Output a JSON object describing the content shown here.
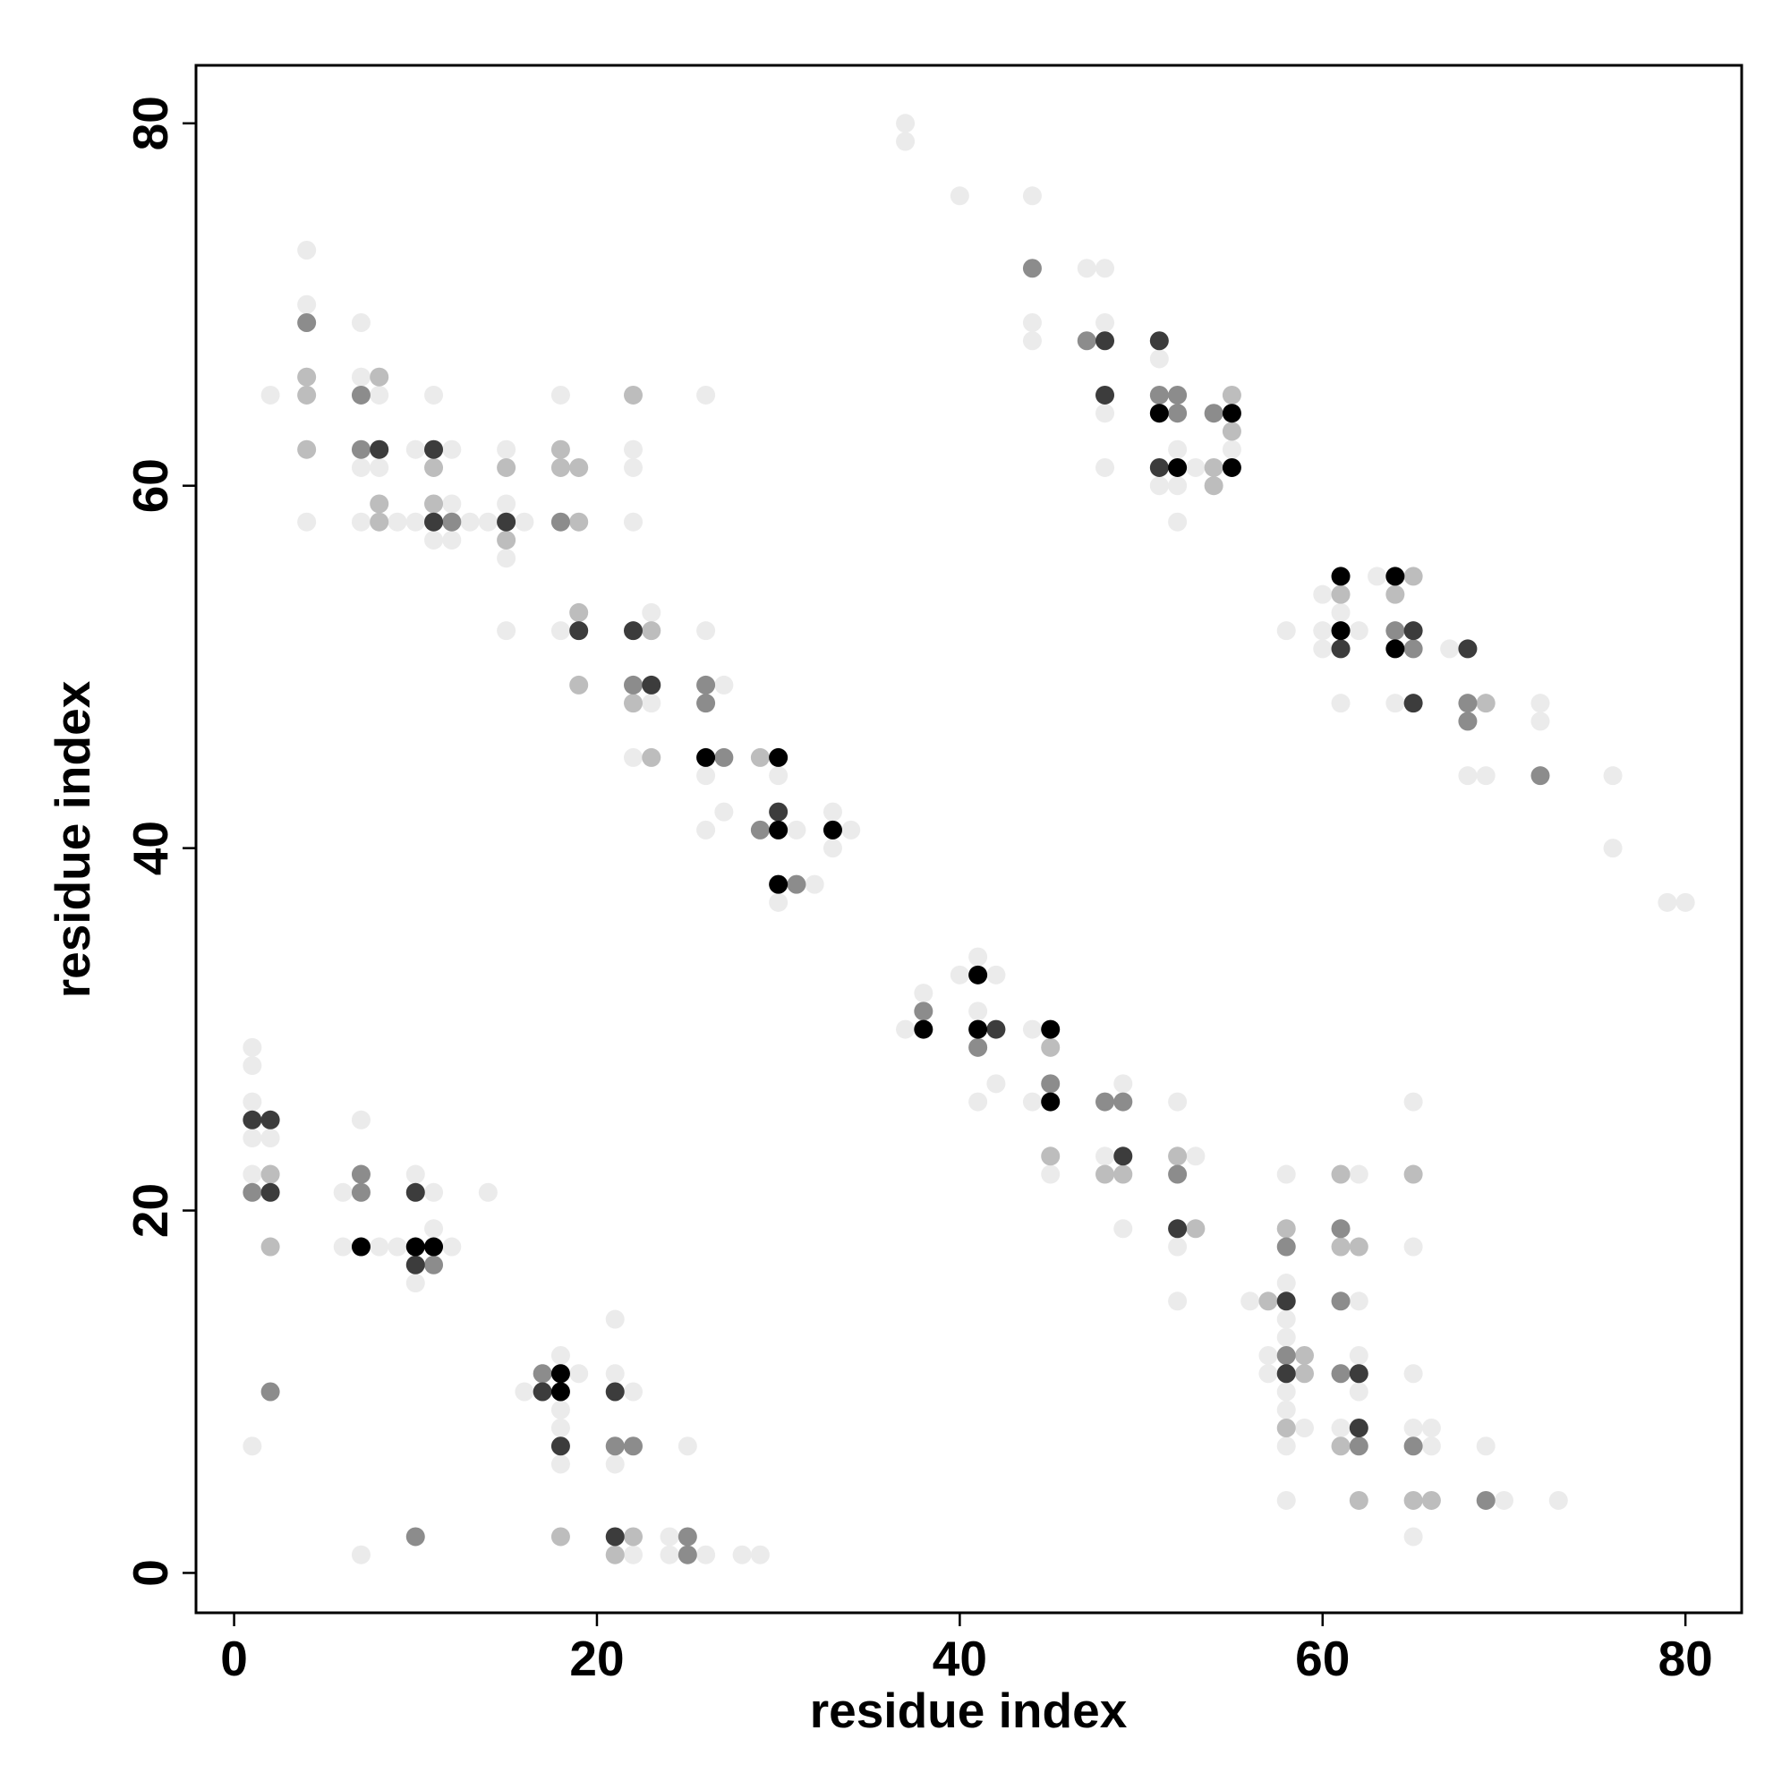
{
  "chart_data": {
    "type": "scatter",
    "x_label": "residue index",
    "y_label": "residue index",
    "xlim": [
      -2.1,
      83.1
    ],
    "ylim": [
      -2.2,
      83.2
    ],
    "xticks": [
      0,
      20,
      40,
      60,
      80
    ],
    "yticks": [
      0,
      20,
      40,
      60,
      80
    ],
    "grid": false,
    "series": [
      {
        "color": "#ebebeb",
        "x": [
          4,
          4,
          2,
          4,
          7,
          7,
          8,
          7,
          8,
          7,
          9,
          11,
          10,
          12,
          12,
          10,
          13,
          14,
          11,
          12,
          15,
          15,
          16,
          15,
          15,
          18,
          22,
          22,
          22,
          26,
          18,
          23,
          23,
          22,
          26,
          27,
          26,
          27,
          26,
          30,
          31,
          33,
          34,
          33,
          32,
          30,
          37,
          37,
          40,
          44,
          47,
          48,
          44,
          44,
          48,
          51,
          48,
          52,
          48,
          53,
          51,
          52,
          52,
          55,
          58,
          60,
          61,
          60,
          62,
          60,
          61,
          63,
          64,
          67,
          68,
          69,
          72,
          72,
          76,
          76,
          79,
          80,
          1,
          1,
          1,
          1,
          2,
          1,
          7,
          6,
          6,
          8,
          9,
          10,
          11,
          11,
          12,
          10,
          14,
          1,
          19,
          16,
          18,
          18,
          18,
          18,
          21,
          21,
          22,
          21,
          25,
          7,
          22,
          24,
          24,
          26,
          28,
          29,
          37,
          38,
          40,
          41,
          42,
          41,
          42,
          41,
          44,
          44,
          45,
          49,
          48,
          49,
          52,
          53,
          52,
          52,
          58,
          56,
          58,
          58,
          58,
          57,
          57,
          58,
          58,
          59,
          58,
          58,
          62,
          62,
          62,
          62,
          61,
          65,
          65,
          65,
          65,
          66,
          66,
          65,
          69,
          70,
          73
        ],
        "y": [
          73,
          70,
          65,
          58,
          69,
          66,
          65,
          61,
          61,
          58,
          58,
          65,
          62,
          62,
          59,
          58,
          58,
          58,
          57,
          57,
          62,
          59,
          58,
          56,
          52,
          65,
          62,
          61,
          58,
          65,
          52,
          53,
          48,
          45,
          52,
          49,
          44,
          42,
          41,
          44,
          41,
          42,
          41,
          40,
          38,
          37,
          80,
          79,
          76,
          76,
          72,
          72,
          69,
          68,
          69,
          67,
          64,
          62,
          61,
          61,
          60,
          60,
          58,
          62,
          52,
          54,
          53,
          52,
          52,
          51,
          48,
          55,
          48,
          51,
          44,
          44,
          48,
          47,
          44,
          40,
          37,
          37,
          29,
          28,
          26,
          24,
          24,
          22,
          25,
          21,
          18,
          18,
          18,
          22,
          21,
          19,
          18,
          16,
          21,
          7,
          11,
          10,
          12,
          9,
          8,
          6,
          14,
          11,
          10,
          6,
          7,
          1,
          1,
          2,
          1,
          1,
          1,
          1,
          30,
          32,
          33,
          34,
          33,
          31,
          27,
          26,
          30,
          26,
          22,
          27,
          23,
          19,
          26,
          23,
          18,
          15,
          22,
          15,
          16,
          14,
          13,
          12,
          11,
          10,
          9,
          8,
          7,
          4,
          22,
          15,
          12,
          10,
          8,
          26,
          18,
          11,
          8,
          8,
          7,
          2,
          7,
          4,
          4
        ]
      },
      {
        "color": "#bdbdbd",
        "x": [
          4,
          4,
          4,
          8,
          8,
          8,
          11,
          11,
          15,
          15,
          18,
          18,
          19,
          19,
          22,
          19,
          19,
          23,
          22,
          23,
          29,
          55,
          55,
          54,
          54,
          61,
          64,
          65,
          69,
          2,
          2,
          18,
          22,
          21,
          45,
          45,
          48,
          49,
          52,
          53,
          58,
          57,
          59,
          59,
          58,
          61,
          61,
          62,
          61,
          62,
          65,
          65,
          66
        ],
        "y": [
          66,
          65,
          62,
          66,
          59,
          58,
          61,
          59,
          61,
          57,
          62,
          61,
          61,
          58,
          65,
          53,
          49,
          52,
          48,
          45,
          45,
          65,
          63,
          61,
          60,
          54,
          54,
          55,
          48,
          22,
          18,
          2,
          2,
          1,
          29,
          23,
          22,
          22,
          23,
          19,
          19,
          15,
          12,
          11,
          8,
          22,
          18,
          18,
          7,
          4,
          22,
          4,
          4
        ]
      },
      {
        "color": "#8c8c8c",
        "x": [
          4,
          7,
          7,
          12,
          18,
          22,
          26,
          26,
          27,
          29,
          31,
          44,
          47,
          51,
          52,
          52,
          54,
          64,
          65,
          68,
          68,
          72,
          1,
          7,
          7,
          11,
          2,
          17,
          21,
          22,
          10,
          25,
          25,
          38,
          41,
          45,
          48,
          49,
          52,
          58,
          58,
          61,
          61,
          61,
          62,
          65,
          69
        ],
        "y": [
          69,
          65,
          62,
          58,
          58,
          49,
          49,
          48,
          45,
          41,
          38,
          72,
          68,
          65,
          65,
          64,
          64,
          52,
          51,
          48,
          47,
          44,
          21,
          22,
          21,
          17,
          10,
          11,
          7,
          7,
          2,
          2,
          1,
          31,
          29,
          27,
          26,
          26,
          22,
          18,
          12,
          19,
          15,
          11,
          7,
          7,
          4
        ]
      },
      {
        "color": "#3c3c3c",
        "x": [
          8,
          11,
          11,
          15,
          19,
          22,
          23,
          30,
          48,
          51,
          48,
          51,
          61,
          65,
          65,
          68,
          1,
          2,
          2,
          10,
          10,
          17,
          18,
          21,
          21,
          42,
          49,
          52,
          58,
          58,
          62,
          62
        ],
        "y": [
          62,
          62,
          58,
          58,
          52,
          52,
          49,
          42,
          68,
          68,
          65,
          61,
          51,
          52,
          48,
          51,
          25,
          25,
          21,
          21,
          17,
          10,
          7,
          10,
          2,
          30,
          23,
          19,
          15,
          11,
          11,
          8
        ]
      },
      {
        "color": "#000000",
        "x": [
          38,
          41,
          41,
          45,
          45,
          26,
          30,
          30,
          33,
          30,
          51,
          52,
          55,
          55,
          61,
          61,
          64,
          64,
          7,
          10,
          11,
          18,
          18
        ],
        "y": [
          30,
          33,
          30,
          30,
          26,
          45,
          45,
          41,
          41,
          38,
          64,
          61,
          64,
          61,
          55,
          52,
          55,
          51,
          18,
          18,
          18,
          11,
          10
        ]
      }
    ]
  }
}
